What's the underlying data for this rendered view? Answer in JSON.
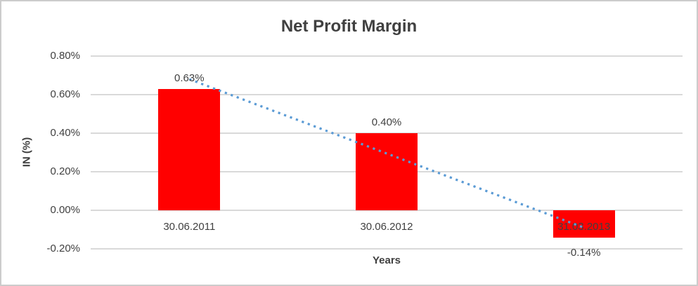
{
  "chart_data": {
    "type": "bar",
    "title": "Net Profit Margin",
    "xlabel": "Years",
    "ylabel": "IN (%)",
    "categories": [
      "30.06.2011",
      "30.06.2012",
      "31.03.2013"
    ],
    "values": [
      0.63,
      0.4,
      -0.14
    ],
    "data_labels": [
      "0.63%",
      "0.40%",
      "-0.14%"
    ],
    "y_ticks": [
      {
        "value": 0.8,
        "label": "0.80%"
      },
      {
        "value": 0.6,
        "label": "0.60%"
      },
      {
        "value": 0.4,
        "label": "0.40%"
      },
      {
        "value": 0.2,
        "label": "0.20%"
      },
      {
        "value": 0.0,
        "label": "0.00%"
      },
      {
        "value": -0.2,
        "label": "-0.20%"
      }
    ],
    "ylim": [
      -0.2,
      0.8
    ],
    "grid": "horizontal",
    "legend": "none",
    "bar_color": "#ff0000",
    "trendline": {
      "type": "linear",
      "style": "dotted",
      "color": "#5b9bd5",
      "start_value": 0.68,
      "end_value": -0.09
    },
    "colors": {
      "text": "#404040",
      "gridline": "#d9d9d9",
      "border": "#cccccc"
    }
  }
}
